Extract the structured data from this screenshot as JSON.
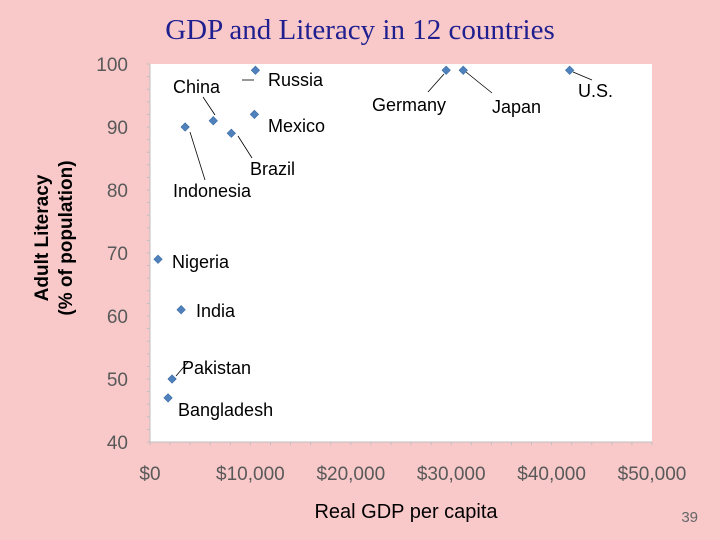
{
  "slide": {
    "title": "GDP and Literacy in 12 countries",
    "page_number": "39"
  },
  "chart_data": {
    "type": "scatter",
    "title": "GDP and Literacy in 12 countries",
    "xlabel": "Real GDP per capita",
    "ylabel_lines": [
      "Adult Literacy",
      "(% of population)"
    ],
    "xlim": [
      0,
      50000
    ],
    "ylim": [
      40,
      100
    ],
    "x_ticks": [
      {
        "value": 0,
        "label": "$0"
      },
      {
        "value": 10000,
        "label": "$10,000"
      },
      {
        "value": 20000,
        "label": "$20,000"
      },
      {
        "value": 30000,
        "label": "$30,000"
      },
      {
        "value": 40000,
        "label": "$40,000"
      },
      {
        "value": 50000,
        "label": "$50,000"
      }
    ],
    "y_ticks": [
      {
        "value": 40,
        "label": "40"
      },
      {
        "value": 50,
        "label": "50"
      },
      {
        "value": 60,
        "label": "60"
      },
      {
        "value": 70,
        "label": "70"
      },
      {
        "value": 80,
        "label": "80"
      },
      {
        "value": 90,
        "label": "90"
      },
      {
        "value": 100,
        "label": "100"
      }
    ],
    "grid": false,
    "marker_color": "#4f81bd",
    "points": [
      {
        "name": "China",
        "x": 6300,
        "y": 91
      },
      {
        "name": "Russia",
        "x": 10500,
        "y": 99
      },
      {
        "name": "Mexico",
        "x": 10400,
        "y": 92
      },
      {
        "name": "Brazil",
        "x": 8100,
        "y": 89
      },
      {
        "name": "Indonesia",
        "x": 3500,
        "y": 90
      },
      {
        "name": "Germany",
        "x": 29500,
        "y": 99
      },
      {
        "name": "Japan",
        "x": 31200,
        "y": 99
      },
      {
        "name": "U.S.",
        "x": 41800,
        "y": 99
      },
      {
        "name": "Nigeria",
        "x": 800,
        "y": 69
      },
      {
        "name": "India",
        "x": 3100,
        "y": 61
      },
      {
        "name": "Pakistan",
        "x": 2200,
        "y": 50
      },
      {
        "name": "Bangladesh",
        "x": 1800,
        "y": 47
      }
    ]
  }
}
